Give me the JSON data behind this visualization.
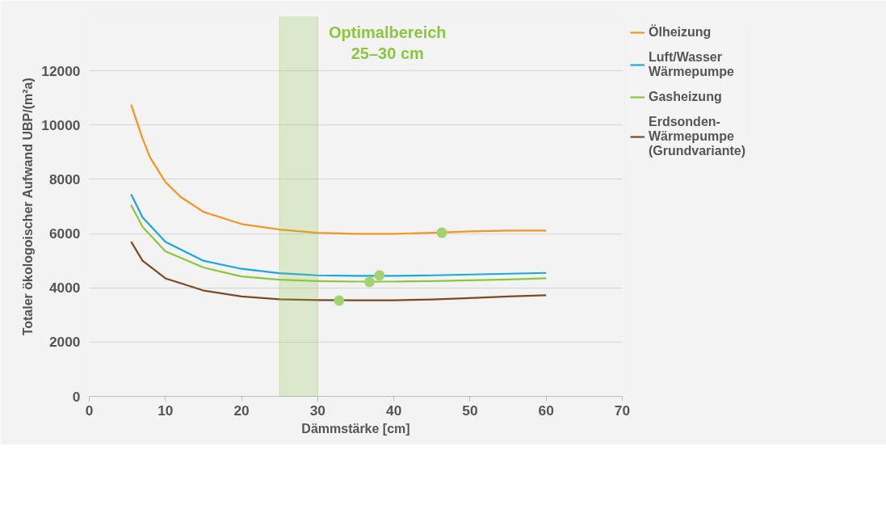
{
  "chart_data": {
    "type": "line",
    "xlabel": "Dämmstärke [cm]",
    "ylabel": "Totaler ökologoischer Aufwand UBP/(m²a)",
    "xlim": [
      0,
      70
    ],
    "xticks": [
      0,
      10,
      20,
      30,
      40,
      50,
      60,
      70
    ],
    "ylim": [
      0,
      14000
    ],
    "yticks": [
      0,
      2000,
      4000,
      6000,
      8000,
      10000,
      12000
    ],
    "grid": "y",
    "legend": "right",
    "marker": "none",
    "line_style": "solid",
    "bands": [
      {
        "axis": "x",
        "from": 25,
        "to": 30,
        "label": "Optimalbereich\n25–30 cm",
        "color": "#8cc63f"
      }
    ],
    "series": [
      {
        "name": "Ölheizung",
        "color": "#f7941d",
        "x": [
          5.5,
          7,
          8,
          10,
          12,
          15,
          20,
          25,
          30,
          35,
          40,
          45,
          50,
          55,
          60
        ],
        "values": [
          10750,
          9500,
          8800,
          7900,
          7350,
          6800,
          6350,
          6150,
          6030,
          5990,
          5990,
          6030,
          6080,
          6110,
          6110
        ]
      },
      {
        "name": "Luft/Wasser Wärmepumpe",
        "color": "#1ba6e0",
        "x": [
          5.5,
          7,
          10,
          15,
          20,
          25,
          30,
          35,
          40,
          45,
          50,
          55,
          60
        ],
        "values": [
          7450,
          6600,
          5700,
          5000,
          4700,
          4540,
          4460,
          4440,
          4440,
          4460,
          4490,
          4520,
          4550
        ]
      },
      {
        "name": "Gasheizung",
        "color": "#8cc63f",
        "x": [
          5.5,
          7,
          10,
          15,
          20,
          25,
          30,
          35,
          40,
          45,
          50,
          55,
          60
        ],
        "values": [
          7050,
          6250,
          5350,
          4750,
          4420,
          4300,
          4250,
          4230,
          4230,
          4250,
          4280,
          4310,
          4350
        ]
      },
      {
        "name": "Erdsonden-Wärmepumpe (Grundvariante)",
        "color": "#7b4a26",
        "x": [
          5.5,
          7,
          10,
          15,
          20,
          25,
          30,
          35,
          40,
          45,
          50,
          55,
          60
        ],
        "values": [
          5700,
          5000,
          4350,
          3900,
          3680,
          3580,
          3550,
          3540,
          3540,
          3570,
          3620,
          3680,
          3730
        ]
      },
      {
        "type": "scatter",
        "marker": "circle",
        "color": "#a3d36e",
        "x": [
          46.3,
          38.1,
          36.8,
          32.8
        ],
        "values": [
          6030,
          4460,
          4220,
          3530
        ]
      }
    ]
  }
}
